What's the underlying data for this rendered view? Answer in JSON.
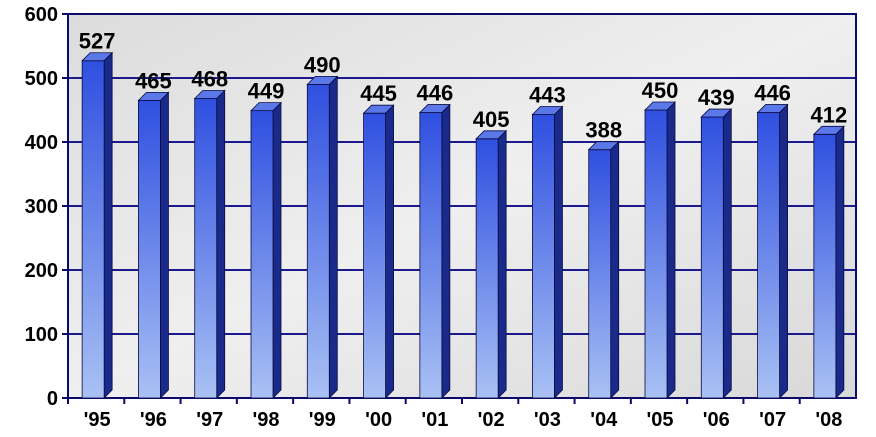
{
  "chart_data": {
    "type": "bar",
    "title": "",
    "xlabel": "",
    "ylabel": "",
    "categories": [
      "'95",
      "'96",
      "'97",
      "'98",
      "'99",
      "'00",
      "'01",
      "'02",
      "'03",
      "'04",
      "'05",
      "'06",
      "'07",
      "'08"
    ],
    "values": [
      527,
      465,
      468,
      449,
      490,
      445,
      446,
      405,
      443,
      388,
      450,
      439,
      446,
      412
    ],
    "data_labels": [
      "527",
      "465",
      "468",
      "449",
      "490",
      "445",
      "446",
      "405",
      "443",
      "388",
      "450",
      "439",
      "446",
      "412"
    ],
    "ylim": [
      0,
      600
    ],
    "yticks": [
      0,
      100,
      200,
      300,
      400,
      500,
      600
    ],
    "ytick_labels": [
      "0",
      "100",
      "200",
      "300",
      "400",
      "500",
      "600"
    ],
    "grid": true,
    "legend": "none",
    "colors": {
      "bar_top": "#2f4fe0",
      "bar_bottom": "#a9c1f4",
      "bar_side": "#1a2a8a",
      "bar_cap": "#5a78e8",
      "grid": "#1a1a8c",
      "axis": "#0a0a6a",
      "plot_bg": "#e9e9e9"
    }
  }
}
